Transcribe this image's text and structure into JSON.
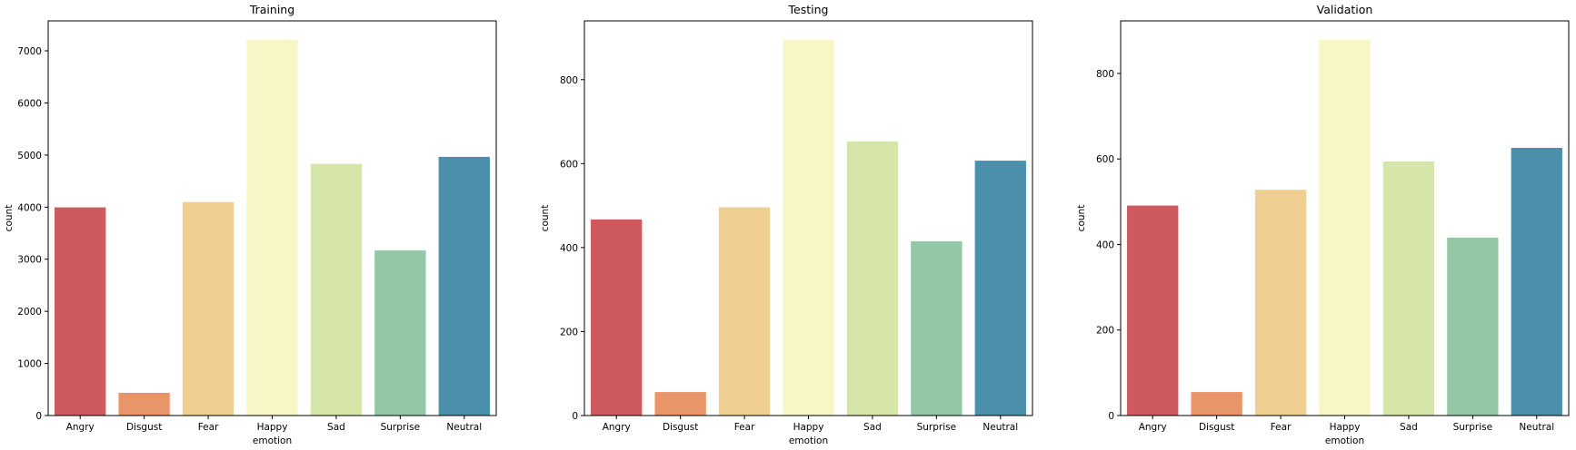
{
  "chart_data": [
    {
      "type": "bar",
      "title": "Training",
      "xlabel": "emotion",
      "ylabel": "count",
      "categories": [
        "Angry",
        "Disgust",
        "Fear",
        "Happy",
        "Sad",
        "Surprise",
        "Neutral"
      ],
      "values": [
        3995,
        436,
        4097,
        7215,
        4830,
        3171,
        4965
      ],
      "ylim": [
        0,
        7575
      ],
      "yticks": [
        0,
        1000,
        2000,
        3000,
        4000,
        5000,
        6000,
        7000
      ],
      "colors": [
        "#cc5a5e",
        "#e8956a",
        "#efcf92",
        "#f7f7c5",
        "#d5e6a8",
        "#93c7a6",
        "#4b90ab"
      ],
      "grid": false,
      "legend": "none"
    },
    {
      "type": "bar",
      "title": "Testing",
      "xlabel": "emotion",
      "ylabel": "count",
      "categories": [
        "Angry",
        "Disgust",
        "Fear",
        "Happy",
        "Sad",
        "Surprise",
        "Neutral"
      ],
      "values": [
        467,
        56,
        496,
        895,
        653,
        415,
        607
      ],
      "ylim": [
        0,
        940
      ],
      "yticks": [
        0,
        200,
        400,
        600,
        800
      ],
      "colors": [
        "#cc5a5e",
        "#e8956a",
        "#efcf92",
        "#f7f7c5",
        "#d5e6a8",
        "#93c7a6",
        "#4b90ab"
      ],
      "grid": false,
      "legend": "none"
    },
    {
      "type": "bar",
      "title": "Validation",
      "xlabel": "emotion",
      "ylabel": "count",
      "categories": [
        "Angry",
        "Disgust",
        "Fear",
        "Happy",
        "Sad",
        "Surprise",
        "Neutral"
      ],
      "values": [
        491,
        55,
        528,
        879,
        594,
        416,
        626
      ],
      "ylim": [
        0,
        923
      ],
      "yticks": [
        0,
        200,
        400,
        600,
        800
      ],
      "colors": [
        "#cc5a5e",
        "#e8956a",
        "#efcf92",
        "#f7f7c5",
        "#d5e6a8",
        "#93c7a6",
        "#4b90ab"
      ],
      "grid": false,
      "legend": "none"
    }
  ]
}
